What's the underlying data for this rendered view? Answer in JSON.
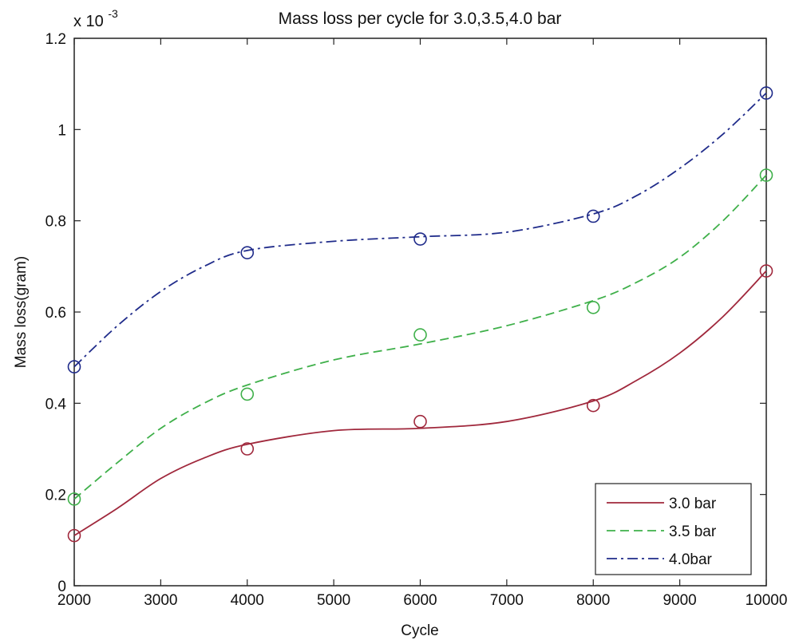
{
  "chart_data": {
    "type": "line",
    "title": "Mass loss per cycle for 3.0,3.5,4.0 bar",
    "xlabel": "Cycle",
    "ylabel": "Mass loss(gram)",
    "y_exponent_label": "x 10",
    "y_exponent_power": "-3",
    "xlim": [
      2000,
      10000
    ],
    "ylim": [
      0,
      1.2
    ],
    "x_ticks": [
      2000,
      3000,
      4000,
      5000,
      6000,
      7000,
      8000,
      9000,
      10000
    ],
    "x_tick_labels": [
      "2000",
      "3000",
      "4000",
      "5000",
      "6000",
      "7000",
      "8000",
      "9000",
      "10000"
    ],
    "y_ticks": [
      0,
      0.2,
      0.4,
      0.6,
      0.8,
      1.0,
      1.2
    ],
    "y_tick_labels": [
      "0",
      "0.2",
      "0.4",
      "0.6",
      "0.8",
      "1",
      "1.2"
    ],
    "grid": false,
    "legend_position": "bottom-right",
    "series": [
      {
        "name": "3.0 bar",
        "color": "#a0283c",
        "dash": "solid",
        "x": [
          2000,
          4000,
          6000,
          8000,
          10000
        ],
        "y": [
          0.11,
          0.3,
          0.36,
          0.395,
          0.69
        ],
        "fit": [
          [
            2000,
            0.11
          ],
          [
            2500,
            0.17
          ],
          [
            3000,
            0.235
          ],
          [
            3500,
            0.28
          ],
          [
            4000,
            0.31
          ],
          [
            5000,
            0.34
          ],
          [
            6000,
            0.345
          ],
          [
            7000,
            0.36
          ],
          [
            8000,
            0.405
          ],
          [
            8500,
            0.45
          ],
          [
            9000,
            0.51
          ],
          [
            9500,
            0.59
          ],
          [
            10000,
            0.69
          ]
        ]
      },
      {
        "name": "3.5 bar",
        "color": "#3fb04a",
        "dash": "dashed",
        "x": [
          2000,
          4000,
          6000,
          8000,
          10000
        ],
        "y": [
          0.19,
          0.42,
          0.55,
          0.61,
          0.9
        ],
        "fit": [
          [
            2000,
            0.19
          ],
          [
            2500,
            0.27
          ],
          [
            3000,
            0.345
          ],
          [
            3500,
            0.4
          ],
          [
            4000,
            0.44
          ],
          [
            5000,
            0.495
          ],
          [
            6000,
            0.53
          ],
          [
            7000,
            0.57
          ],
          [
            8000,
            0.625
          ],
          [
            8500,
            0.665
          ],
          [
            9000,
            0.72
          ],
          [
            9500,
            0.8
          ],
          [
            10000,
            0.9
          ]
        ]
      },
      {
        "name": "4.0bar",
        "color": "#1f2b8a",
        "dash": "dashdot",
        "x": [
          2000,
          4000,
          6000,
          8000,
          10000
        ],
        "y": [
          0.48,
          0.73,
          0.76,
          0.81,
          1.08
        ],
        "fit": [
          [
            2000,
            0.48
          ],
          [
            2500,
            0.57
          ],
          [
            3000,
            0.645
          ],
          [
            3500,
            0.7
          ],
          [
            4000,
            0.735
          ],
          [
            5000,
            0.755
          ],
          [
            6000,
            0.765
          ],
          [
            7000,
            0.775
          ],
          [
            8000,
            0.815
          ],
          [
            8500,
            0.855
          ],
          [
            9000,
            0.915
          ],
          [
            9500,
            0.99
          ],
          [
            10000,
            1.08
          ]
        ]
      }
    ]
  }
}
